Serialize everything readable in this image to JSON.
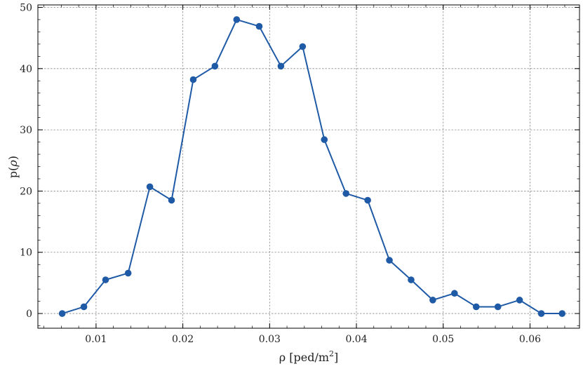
{
  "chart_data": {
    "type": "line",
    "title": "",
    "xlabel": {
      "prefix": "ρ [ped/m",
      "sup": "2",
      "suffix": "]"
    },
    "ylabel": {
      "main": "p(",
      "var": "ρ",
      "close": ")"
    },
    "xlim": [
      0.0033,
      0.0657
    ],
    "ylim": [
      -2.4,
      50.4
    ],
    "x_ticks": [
      0.01,
      0.02,
      0.03,
      0.04,
      0.05,
      0.06
    ],
    "x_tick_labels": [
      "0.01",
      "0.02",
      "0.03",
      "0.04",
      "0.05",
      "0.06"
    ],
    "y_ticks": [
      0,
      10,
      20,
      30,
      40,
      50
    ],
    "y_tick_labels": [
      "0",
      "10",
      "20",
      "30",
      "40",
      "50"
    ],
    "x_minor_step": 0.002,
    "y_minor_step": 2,
    "grid": true,
    "series": [
      {
        "color": "#1f5aa6",
        "marker": "circle",
        "points": [
          {
            "x": 0.0061,
            "y": 0.0
          },
          {
            "x": 0.0086,
            "y": 1.1
          },
          {
            "x": 0.0111,
            "y": 5.5
          },
          {
            "x": 0.0137,
            "y": 6.6
          },
          {
            "x": 0.0162,
            "y": 20.7
          },
          {
            "x": 0.0187,
            "y": 18.5
          },
          {
            "x": 0.0212,
            "y": 38.2
          },
          {
            "x": 0.0237,
            "y": 40.4
          },
          {
            "x": 0.0262,
            "y": 48.0
          },
          {
            "x": 0.0288,
            "y": 46.9
          },
          {
            "x": 0.0313,
            "y": 40.4
          },
          {
            "x": 0.0338,
            "y": 43.6
          },
          {
            "x": 0.0363,
            "y": 28.4
          },
          {
            "x": 0.0388,
            "y": 19.6
          },
          {
            "x": 0.0413,
            "y": 18.5
          },
          {
            "x": 0.0438,
            "y": 8.7
          },
          {
            "x": 0.0463,
            "y": 5.5
          },
          {
            "x": 0.0488,
            "y": 2.2
          },
          {
            "x": 0.0513,
            "y": 3.3
          },
          {
            "x": 0.0538,
            "y": 1.1
          },
          {
            "x": 0.0563,
            "y": 1.1
          },
          {
            "x": 0.0588,
            "y": 2.2
          },
          {
            "x": 0.0613,
            "y": 0.0
          },
          {
            "x": 0.0637,
            "y": 0.0
          }
        ]
      }
    ]
  }
}
